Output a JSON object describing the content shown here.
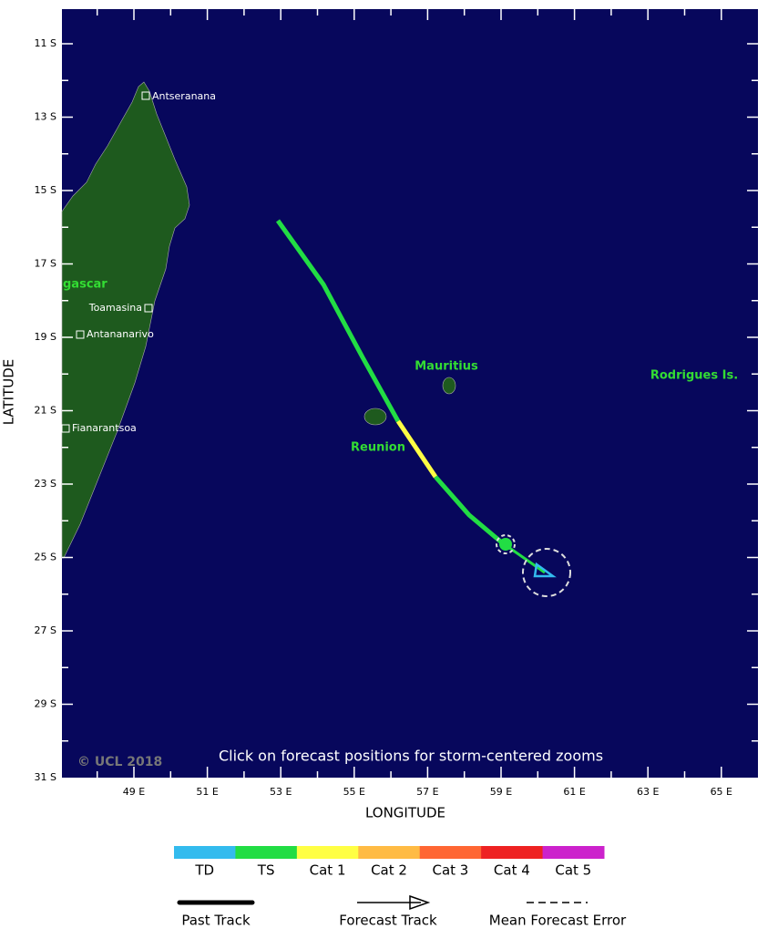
{
  "map": {
    "lat_labels": [
      "11 S",
      "13 S",
      "15 S",
      "17 S",
      "19 S",
      "21 S",
      "23 S",
      "25 S",
      "27 S",
      "29 S",
      "31 S"
    ],
    "lon_labels": [
      "49 E",
      "51 E",
      "53 E",
      "55 E",
      "57 E",
      "59 E",
      "61 E",
      "63 E",
      "65 E"
    ],
    "y_axis_title": "LATITUDE",
    "x_axis_title": "LONGITUDE",
    "places": [
      "Antseranana",
      "Toamasina",
      "Antananarivo",
      "Fianarantsoa",
      "gascar",
      "Mauritius",
      "Reunion",
      "Rodrigues Is."
    ],
    "copyright": "© UCL 2018",
    "note": "Click on forecast positions for storm-centered zooms"
  },
  "legend": {
    "categories": [
      {
        "label": "TD",
        "color": "#33bbee"
      },
      {
        "label": "TS",
        "color": "#22dd44"
      },
      {
        "label": "Cat 1",
        "color": "#ffff44"
      },
      {
        "label": "Cat 2",
        "color": "#ffbb44"
      },
      {
        "label": "Cat 3",
        "color": "#ff6633"
      },
      {
        "label": "Cat 4",
        "color": "#ee2222"
      },
      {
        "label": "Cat 5",
        "color": "#cc22cc"
      }
    ],
    "track_types": [
      "Past Track",
      "Forecast Track",
      "Mean Forecast Error"
    ]
  }
}
